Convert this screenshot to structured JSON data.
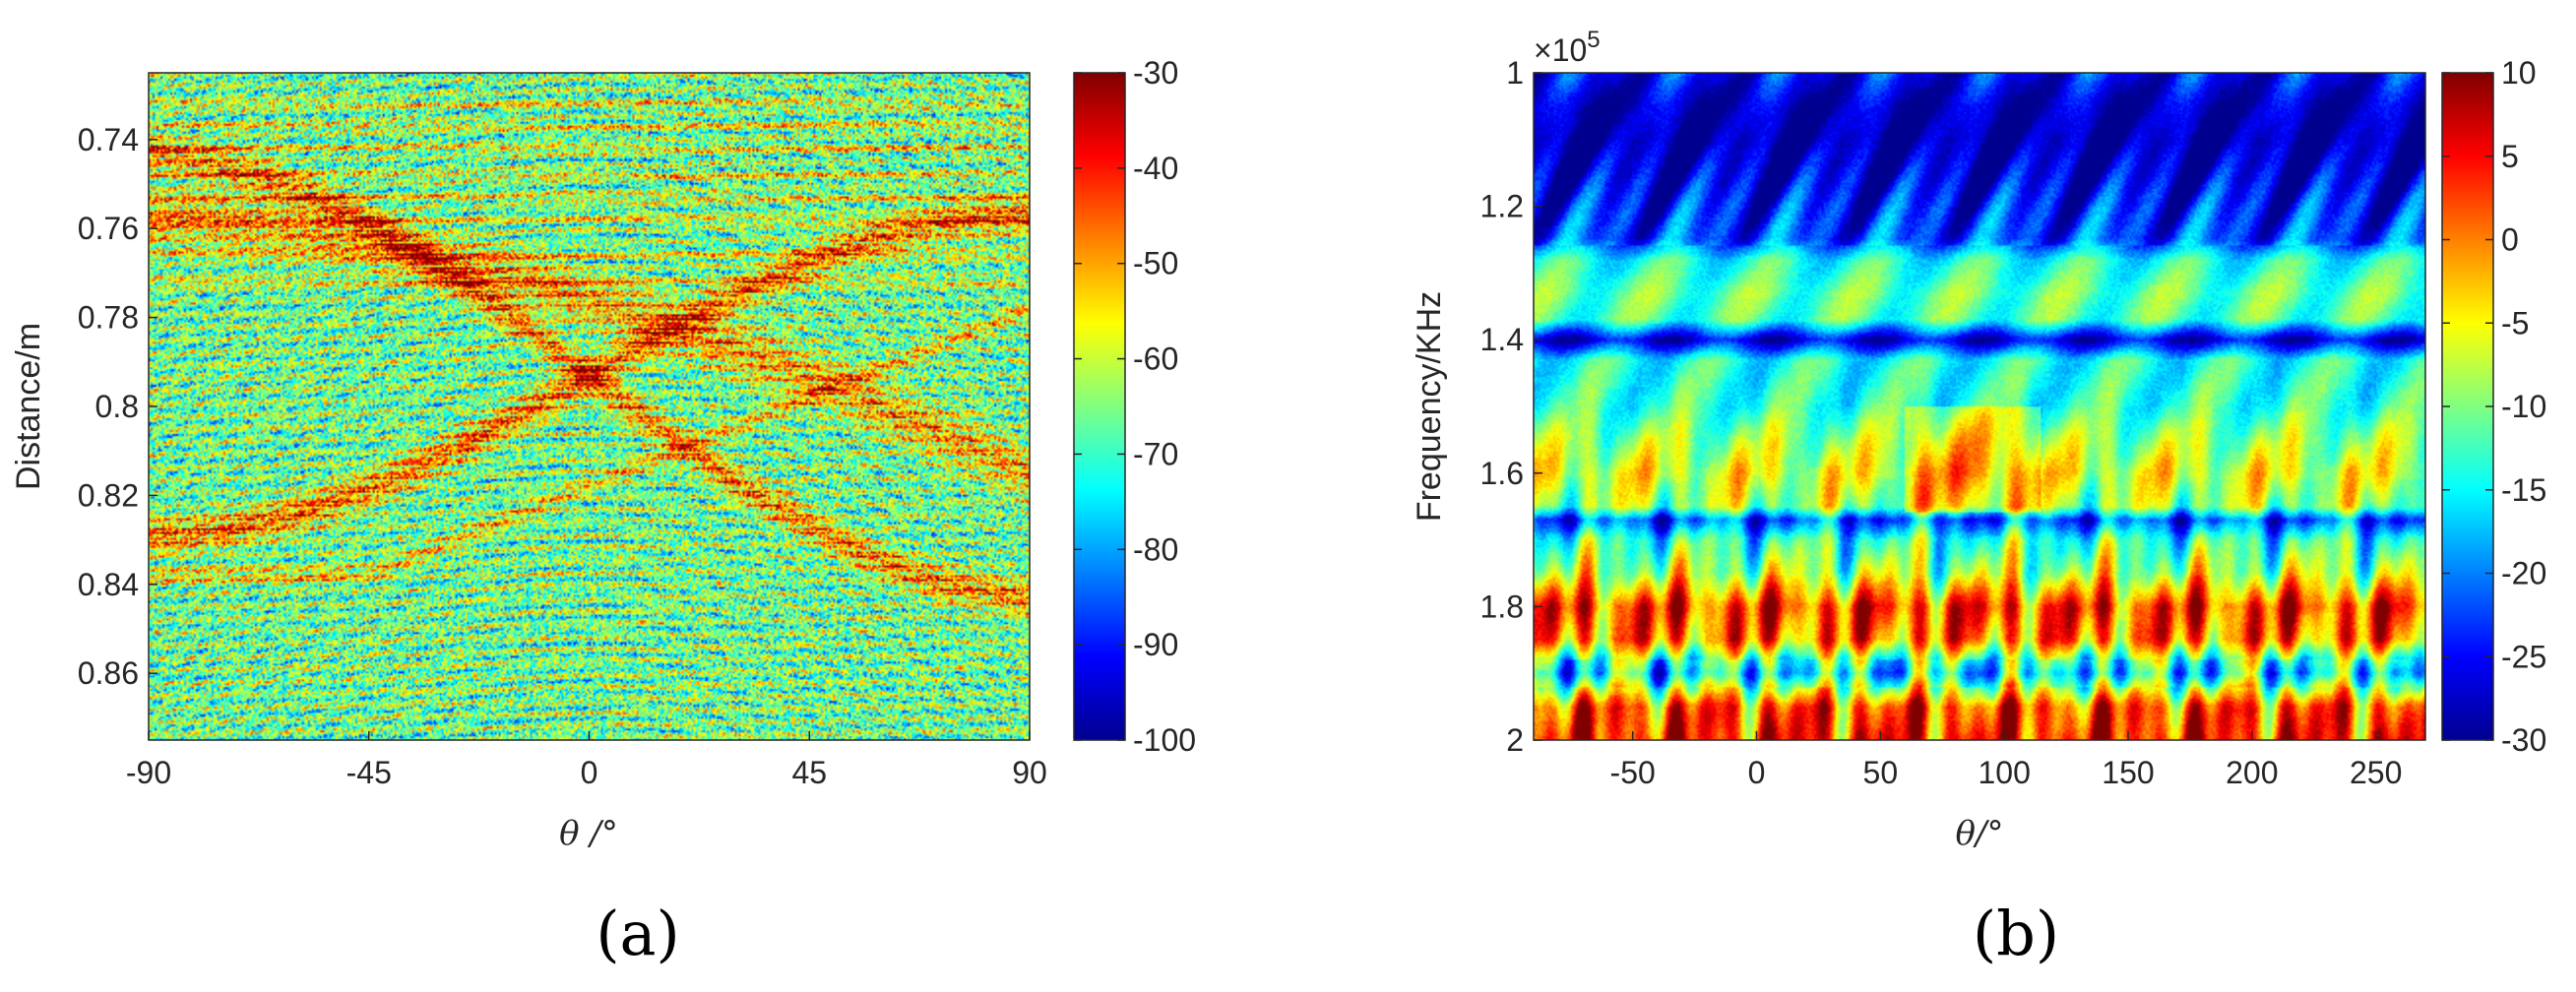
{
  "colors": {
    "jet": [
      "#00008f",
      "#0000ff",
      "#0080ff",
      "#00ffff",
      "#80ff80",
      "#ffff00",
      "#ff8000",
      "#ff0000",
      "#800000"
    ],
    "axis": "#262626"
  },
  "chart_data": [
    {
      "panel_label": "(a)",
      "type": "heatmap",
      "xlabel": "θ /°",
      "ylabel": "Distance/m",
      "xlim": [
        -90,
        90
      ],
      "ylim": [
        0.725,
        0.875
      ],
      "y_direction": "reversed",
      "x_ticks": [
        -90,
        -45,
        0,
        45,
        90
      ],
      "x_tick_labels": [
        "-90",
        "-45",
        "0",
        "45",
        "90"
      ],
      "y_ticks": [
        0.74,
        0.76,
        0.78,
        0.8,
        0.82,
        0.84,
        0.86
      ],
      "y_tick_labels": [
        "0.74",
        "0.76",
        "0.78",
        "0.8",
        "0.82",
        "0.84",
        "0.86"
      ],
      "colorbar": {
        "limits": [
          -100,
          -30
        ],
        "ticks": [
          -30,
          -40,
          -50,
          -60,
          -70,
          -80,
          -90,
          -100
        ],
        "tick_labels": [
          "-30",
          "-40",
          "-50",
          "-60",
          "-70",
          "-80",
          "-90",
          "-100"
        ]
      },
      "features": {
        "background_level": -66,
        "horizontal_bands": [
          0.732,
          0.737,
          0.742,
          0.748,
          0.753,
          0.758,
          0.766,
          0.772
        ],
        "arcs_peak_distance": [
          0.758,
          0.772,
          0.79,
          0.812,
          0.836
        ],
        "crossing_point": [
          0,
          0.793
        ]
      }
    },
    {
      "panel_label": "(b)",
      "type": "heatmap",
      "xlabel": "θ/°",
      "ylabel": "Frequency/KHz",
      "axis_multiplier": "×10",
      "axis_multiplier_exponent": "5",
      "xlim": [
        -90,
        270
      ],
      "ylim": [
        1.0,
        2.0
      ],
      "y_direction": "reversed",
      "x_ticks": [
        -50,
        0,
        50,
        100,
        150,
        200,
        250
      ],
      "x_tick_labels": [
        "-50",
        "0",
        "50",
        "100",
        "150",
        "200",
        "250"
      ],
      "y_ticks": [
        1.0,
        1.2,
        1.4,
        1.6,
        1.8,
        2.0
      ],
      "y_tick_labels": [
        "1",
        "1.2",
        "1.4",
        "1.6",
        "1.8",
        "2"
      ],
      "colorbar": {
        "limits": [
          -30,
          10
        ],
        "ticks": [
          10,
          5,
          0,
          -5,
          -10,
          -15,
          -20,
          -25,
          -30
        ],
        "tick_labels": [
          "10",
          "5",
          "0",
          "-5",
          "-10",
          "-15",
          "-20",
          "-25",
          "-30"
        ]
      },
      "features": {
        "frequency_profile": [
          [
            1.0,
            -25
          ],
          [
            1.05,
            -28
          ],
          [
            1.1,
            -29
          ],
          [
            1.15,
            -27
          ],
          [
            1.2,
            -24
          ],
          [
            1.25,
            -22
          ],
          [
            1.28,
            -14
          ],
          [
            1.33,
            -11
          ],
          [
            1.37,
            -12
          ],
          [
            1.4,
            -27
          ],
          [
            1.43,
            -14
          ],
          [
            1.5,
            -13
          ],
          [
            1.55,
            -9
          ],
          [
            1.6,
            -6
          ],
          [
            1.65,
            -9
          ],
          [
            1.67,
            -22
          ],
          [
            1.7,
            -13
          ],
          [
            1.75,
            -8
          ],
          [
            1.8,
            3
          ],
          [
            1.85,
            0
          ],
          [
            1.88,
            -12
          ],
          [
            1.9,
            -16
          ],
          [
            1.95,
            2
          ],
          [
            2.0,
            4
          ]
        ]
      }
    }
  ]
}
